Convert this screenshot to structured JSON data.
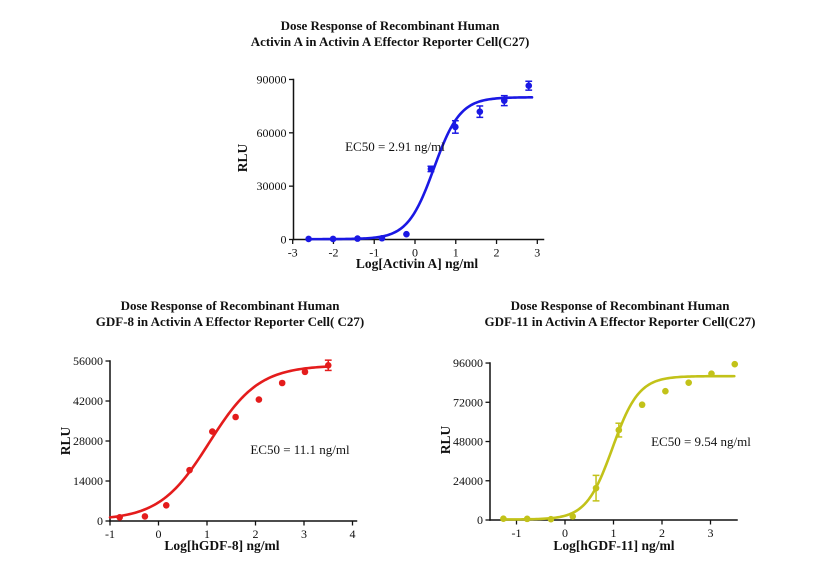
{
  "page": {
    "background": "#ffffff",
    "text_color": "#111111"
  },
  "chart_data": [
    {
      "type": "line",
      "id": "activin-a",
      "title_line1": "Dose Response of Recombinant Human",
      "title_line2": "Activin A in Activin A Effector Reporter Cell(C27)",
      "xlabel": "Log[Activin A] ng/ml",
      "ylabel": "RLU",
      "annotation": "EC50 = 2.91 ng/ml",
      "color": "#1a18e4",
      "x_ticks": [
        -3,
        -2,
        -1,
        0,
        1,
        2,
        3
      ],
      "y_ticks": [
        0,
        30000,
        60000,
        90000
      ],
      "x_axis_min": -3.03,
      "x_axis_max": 3.15,
      "y_axis_max": 90000,
      "grid": false,
      "legend": "none",
      "points": [
        [
          -2.61,
          300,
          0
        ],
        [
          -2.01,
          300,
          0
        ],
        [
          -1.41,
          500,
          0
        ],
        [
          -0.81,
          700,
          0
        ],
        [
          -0.21,
          3000,
          0
        ],
        [
          0.39,
          39700,
          1500
        ],
        [
          0.99,
          63300,
          3500
        ],
        [
          1.59,
          71900,
          3200
        ],
        [
          2.19,
          78100,
          2800
        ],
        [
          2.79,
          86500,
          2500
        ]
      ],
      "curve": {
        "bottom": 200,
        "top": 80000,
        "logec50": 0.464,
        "hill": 1.35,
        "x_start": -2.61,
        "x_end": 2.87
      }
    },
    {
      "type": "line",
      "id": "gdf-8",
      "title_line1": "Dose Response of Recombinant Human",
      "title_line2": "GDF-8 in Activin A Effector Reporter Cell( C27)",
      "xlabel": "Log[hGDF-8] ng/ml",
      "ylabel": "RLU",
      "annotation": "EC50 = 11.1 ng/ml",
      "color": "#e41c1c",
      "x_ticks": [
        -1,
        0,
        1,
        2,
        3,
        4
      ],
      "y_ticks": [
        0,
        14000,
        28000,
        42000,
        56000
      ],
      "x_axis_min": -1.0,
      "x_axis_max": 4.08,
      "y_axis_max": 56000,
      "grid": false,
      "legend": "none",
      "points": [
        [
          -0.8,
          1300,
          0
        ],
        [
          -0.28,
          1600,
          0
        ],
        [
          0.16,
          5500,
          0
        ],
        [
          0.64,
          17800,
          0
        ],
        [
          1.11,
          31300,
          0
        ],
        [
          1.59,
          36400,
          0
        ],
        [
          2.07,
          42500,
          0
        ],
        [
          2.55,
          48300,
          0
        ],
        [
          3.02,
          52200,
          0
        ],
        [
          3.5,
          54500,
          1800
        ]
      ],
      "curve": {
        "bottom": 300,
        "top": 54500,
        "logec50": 1.045,
        "hill": 0.85,
        "x_start": -1.0,
        "x_end": 3.52
      }
    },
    {
      "type": "line",
      "id": "gdf-11",
      "title_line1": "Dose Response of Recombinant Human",
      "title_line2": "GDF-11 in Activin A Effector Reporter Cell(C27)",
      "xlabel": "Log[hGDF-11] ng/ml",
      "ylabel": "RLU",
      "annotation": "EC50 = 9.54 ng/ml",
      "color": "#c2c219",
      "x_ticks": [
        -1,
        0,
        1,
        2,
        3
      ],
      "y_ticks": [
        0,
        24000,
        48000,
        72000,
        96000
      ],
      "x_axis_min": -1.55,
      "x_axis_max": 3.55,
      "y_axis_max": 96000,
      "grid": false,
      "legend": "none",
      "points": [
        [
          -1.27,
          800,
          0
        ],
        [
          -0.78,
          700,
          0
        ],
        [
          -0.29,
          500,
          0
        ],
        [
          0.16,
          2200,
          0
        ],
        [
          0.64,
          19500,
          7800
        ],
        [
          1.11,
          55000,
          4200
        ],
        [
          1.59,
          70500,
          0
        ],
        [
          2.07,
          78800,
          0
        ],
        [
          2.55,
          84000,
          0
        ],
        [
          3.02,
          89500,
          0
        ],
        [
          3.5,
          95300,
          0
        ]
      ],
      "curve": {
        "bottom": 300,
        "top": 88000,
        "logec50": 0.98,
        "hill": 1.6,
        "x_start": -1.27,
        "x_end": 3.5
      }
    }
  ]
}
